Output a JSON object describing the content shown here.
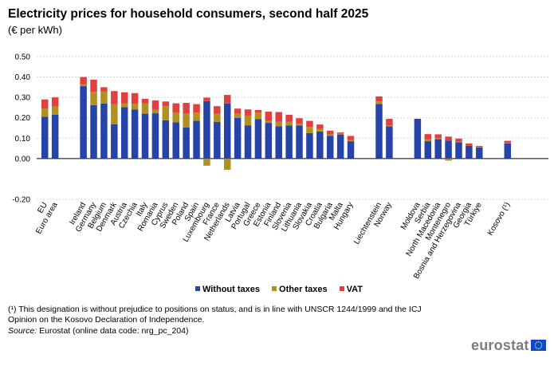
{
  "title": "Electricity prices for household consumers, second half 2025",
  "subtitle": "(€ per kWh)",
  "legend": {
    "without_taxes": "Without taxes",
    "other_taxes": "Other taxes",
    "vat": "VAT"
  },
  "footnote": "(¹) This designation is without prejudice to positions on status, and is in line with UNSCR 1244/1999 and the ICJ Opinion on the Kosovo Declaration of Independence.",
  "source": {
    "label": "Source:",
    "text": "Eurostat (online data code: nrg_pc_204)"
  },
  "brand": "eurostat",
  "colors": {
    "without_taxes": "#2644a7",
    "other_taxes": "#b09120",
    "vat": "#e04040",
    "grid": "#cccccc",
    "axis": "#000000"
  },
  "chart_data": {
    "type": "bar",
    "stacked": true,
    "ylim": [
      -0.2,
      0.5
    ],
    "yticks": [
      "-0.20",
      "0.00",
      "0.10",
      "0.20",
      "0.30",
      "0.40",
      "0.50"
    ],
    "grid": true,
    "legend_position": "bottom",
    "groups": [
      {
        "categories": [
          "EU",
          "Euro area"
        ],
        "without_taxes": [
          0.205,
          0.215
        ],
        "other_taxes": [
          0.04,
          0.04
        ],
        "vat": [
          0.045,
          0.045
        ]
      },
      {
        "categories": [
          "Ireland",
          "Germany",
          "Belgium",
          "Denmark",
          "Austria",
          "Czechia",
          "Italy",
          "Romania",
          "Cyprus",
          "Sweden",
          "Poland",
          "Spain",
          "Luxembourg",
          "France",
          "Netherlands",
          "Latvia",
          "Portugal",
          "Greece",
          "Estonia",
          "Finland",
          "Slovenia",
          "Lithuania",
          "Slovakia",
          "Croatia",
          "Bulgaria",
          "Malta",
          "Hungary"
        ],
        "without_taxes": [
          0.355,
          0.262,
          0.27,
          0.168,
          0.252,
          0.24,
          0.22,
          0.222,
          0.188,
          0.178,
          0.153,
          0.185,
          0.282,
          0.18,
          0.27,
          0.2,
          0.163,
          0.193,
          0.175,
          0.158,
          0.162,
          0.162,
          0.125,
          0.133,
          0.112,
          0.118,
          0.085
        ],
        "other_taxes": [
          0.01,
          0.065,
          0.06,
          0.098,
          0.018,
          0.028,
          0.05,
          0.018,
          0.07,
          0.048,
          0.068,
          0.04,
          -0.035,
          0.04,
          -0.055,
          0.02,
          0.048,
          0.033,
          0.01,
          0.022,
          0.018,
          0.008,
          0.03,
          0.012,
          0.007,
          0.004,
          0.006
        ],
        "vat": [
          0.035,
          0.06,
          0.02,
          0.065,
          0.055,
          0.053,
          0.023,
          0.045,
          0.022,
          0.045,
          0.052,
          0.042,
          0.017,
          0.037,
          0.042,
          0.025,
          0.03,
          0.012,
          0.045,
          0.048,
          0.035,
          0.028,
          0.03,
          0.022,
          0.018,
          0.006,
          0.02
        ]
      },
      {
        "categories": [
          "Liechtenstein",
          "Norway"
        ],
        "without_taxes": [
          0.268,
          0.158
        ],
        "other_taxes": [
          0.012,
          0.005
        ],
        "vat": [
          0.025,
          0.032
        ]
      },
      {
        "categories": [
          "Moldova",
          "Serbia",
          "North Macedonia",
          "Montenegro",
          "Bosnia and Herzegovina",
          "Georgia",
          "Türkiye"
        ],
        "without_taxes": [
          0.195,
          0.085,
          0.095,
          0.088,
          0.08,
          0.062,
          0.055
        ],
        "other_taxes": [
          0.0,
          0.01,
          0.006,
          -0.01,
          0.004,
          0.002,
          0.002
        ],
        "vat": [
          0.0,
          0.025,
          0.018,
          0.02,
          0.014,
          0.01,
          0.005
        ]
      },
      {
        "categories": [
          "Kosovo (¹)"
        ],
        "without_taxes": [
          0.075
        ],
        "other_taxes": [
          0.002
        ],
        "vat": [
          0.01
        ]
      }
    ]
  }
}
